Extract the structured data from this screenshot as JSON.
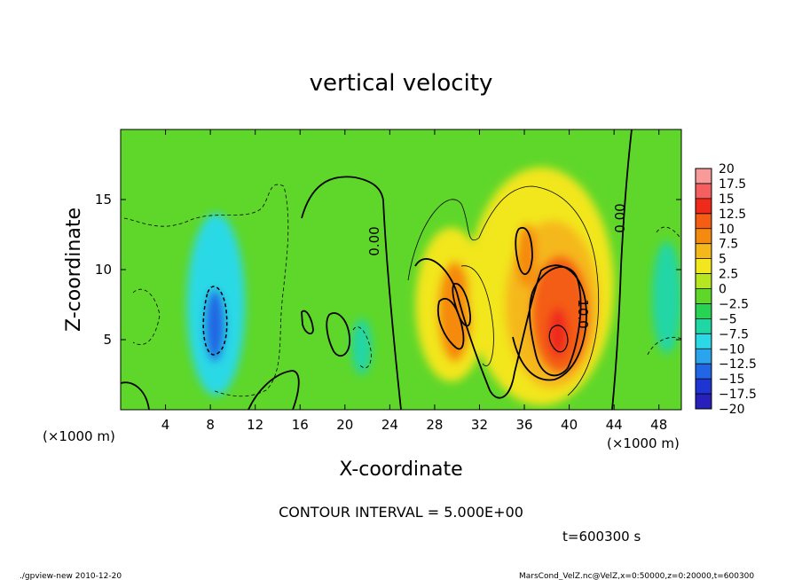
{
  "chart_data": {
    "type": "heatmap",
    "title": "vertical velocity",
    "xlabel": "X-coordinate",
    "ylabel": "Z-coordinate",
    "x_unit": "(×1000 m)",
    "y_unit": "(×1000 m)",
    "xlim": [
      0,
      50
    ],
    "ylim": [
      0,
      20
    ],
    "xticks": [
      "4",
      "8",
      "12",
      "16",
      "20",
      "24",
      "28",
      "32",
      "36",
      "40",
      "44",
      "48"
    ],
    "yticks": [
      "5",
      "10",
      "15"
    ],
    "contour_labels": [
      "0.00",
      "0.00",
      "10.0"
    ],
    "contour_interval_text": "CONTOUR INTERVAL = 5.000E+00",
    "time_text": "t=600300 s",
    "colorbar": {
      "levels": [
        "20",
        "17.5",
        "15",
        "12.5",
        "10",
        "7.5",
        "5",
        "2.5",
        "0",
        "−2.5",
        "−5",
        "−7.5",
        "−10",
        "−12.5",
        "−15",
        "−17.5",
        "−20"
      ],
      "colors": [
        "#f79a9a",
        "#f46060",
        "#ee2a1a",
        "#f45d12",
        "#f58a10",
        "#f5b81a",
        "#f2e61f",
        "#b5e61f",
        "#5fd72a",
        "#27d353",
        "#21d6a5",
        "#2bd9e6",
        "#2aa4ec",
        "#2166e4",
        "#1f35d3",
        "#2720ba",
        "#4f1aa6"
      ]
    },
    "background_color": "#5fd72a",
    "features": [
      {
        "x": 8.5,
        "z": 7.5,
        "rx": 2.6,
        "rz": 6.5,
        "value": -8
      },
      {
        "x": 8.4,
        "z": 6.0,
        "rx": 0.9,
        "rz": 2.6,
        "value": -12
      },
      {
        "x": 21.5,
        "z": 4.5,
        "rx": 0.9,
        "rz": 2.0,
        "value": -6
      },
      {
        "x": 48.7,
        "z": 8.0,
        "rx": 1.3,
        "rz": 4.0,
        "value": -6
      },
      {
        "x": 29.5,
        "z": 7.5,
        "rx": 3.2,
        "rz": 5.5,
        "value": 6
      },
      {
        "x": 29.8,
        "z": 7.0,
        "rx": 1.5,
        "rz": 3.6,
        "value": 10
      },
      {
        "x": 37.5,
        "z": 8.8,
        "rx": 6.5,
        "rz": 8.5,
        "value": 5
      },
      {
        "x": 38.5,
        "z": 7.5,
        "rx": 4.2,
        "rz": 6.0,
        "value": 8
      },
      {
        "x": 39.2,
        "z": 6.8,
        "rx": 2.6,
        "rz": 4.2,
        "value": 12
      },
      {
        "x": 36.2,
        "z": 11.0,
        "rx": 0.9,
        "rz": 2.3,
        "value": 9
      },
      {
        "x": 39.0,
        "z": 5.5,
        "rx": 0.9,
        "rz": 1.8,
        "value": 15
      }
    ]
  },
  "footer": {
    "left": "./gpview-new  2010-12-20",
    "right": "MarsCond_VelZ.nc@VelZ,x=0:50000,z=0:20000,t=600300"
  }
}
